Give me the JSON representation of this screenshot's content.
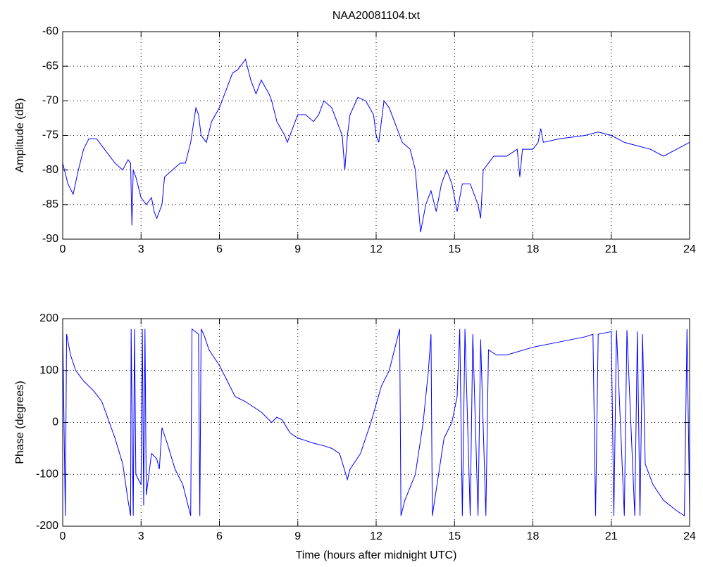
{
  "chart_data": [
    {
      "type": "line",
      "title": "NAA20081104.txt",
      "ylabel": "Amplitude (dB)",
      "color": "#0000ff",
      "grid": true,
      "xlim": [
        0,
        24
      ],
      "xticks": [
        0,
        3,
        6,
        9,
        12,
        15,
        18,
        21,
        24
      ],
      "ylim": [
        -90,
        -60
      ],
      "yticks": [
        -90,
        -85,
        -80,
        -75,
        -70,
        -65,
        -60
      ],
      "x": [
        0,
        0.2,
        0.4,
        0.6,
        0.8,
        1.0,
        1.3,
        1.6,
        2.0,
        2.3,
        2.5,
        2.6,
        2.65,
        2.7,
        2.8,
        3.0,
        3.2,
        3.4,
        3.5,
        3.6,
        3.8,
        3.9,
        4.2,
        4.5,
        4.7,
        4.9,
        5.1,
        5.2,
        5.3,
        5.5,
        5.7,
        6.0,
        6.3,
        6.5,
        6.7,
        7.0,
        7.2,
        7.4,
        7.6,
        7.9,
        8.0,
        8.2,
        8.5,
        8.6,
        8.8,
        9.0,
        9.3,
        9.6,
        9.8,
        10.0,
        10.3,
        10.5,
        10.7,
        10.8,
        10.9,
        11.0,
        11.3,
        11.6,
        11.9,
        12.0,
        12.1,
        12.3,
        12.5,
        12.7,
        13.0,
        13.3,
        13.5,
        13.7,
        13.9,
        14.1,
        14.3,
        14.5,
        14.7,
        14.9,
        15.1,
        15.3,
        15.6,
        15.9,
        16.0,
        16.1,
        16.5,
        17.0,
        17.4,
        17.5,
        17.6,
        18.0,
        18.2,
        18.3,
        18.4,
        19,
        20,
        20.5,
        21,
        21.5,
        22,
        22.5,
        23,
        23.5,
        24
      ],
      "values": [
        -79,
        -82,
        -83.5,
        -80,
        -77,
        -75.5,
        -75.5,
        -77,
        -79,
        -80,
        -78.5,
        -79,
        -88,
        -80,
        -81,
        -84,
        -85,
        -84,
        -86,
        -87,
        -85,
        -81,
        -80,
        -79,
        -79,
        -76,
        -71,
        -72,
        -75,
        -76,
        -73,
        -71,
        -68,
        -66,
        -65.5,
        -64,
        -67,
        -69,
        -67,
        -69,
        -70,
        -73,
        -75,
        -76,
        -74,
        -72,
        -72,
        -73,
        -72,
        -70,
        -71,
        -73,
        -75,
        -80,
        -75,
        -72,
        -69.5,
        -70,
        -72,
        -75,
        -76,
        -70,
        -71,
        -73,
        -76,
        -77,
        -80,
        -89,
        -85,
        -83,
        -86,
        -82,
        -80,
        -82,
        -86,
        -82,
        -82,
        -85,
        -87,
        -80,
        -78,
        -78,
        -77,
        -81,
        -77,
        -77,
        -76,
        -74,
        -76,
        -75.5,
        -75,
        -74.5,
        -75,
        -76,
        -76.5,
        -77,
        -78,
        -77,
        -76
      ]
    },
    {
      "type": "line",
      "ylabel": "Phase (degrees)",
      "xlabel": "Time (hours after midnight UTC)",
      "color": "#0000ff",
      "grid": true,
      "xlim": [
        0,
        24
      ],
      "xticks": [
        0,
        3,
        6,
        9,
        12,
        15,
        18,
        21,
        24
      ],
      "ylim": [
        -200,
        200
      ],
      "yticks": [
        -200,
        -100,
        0,
        100,
        200
      ],
      "x": [
        0,
        0.1,
        0.15,
        0.3,
        0.5,
        0.8,
        1.2,
        1.5,
        2.0,
        2.3,
        2.5,
        2.6,
        2.62,
        2.7,
        2.75,
        2.8,
        3.0,
        3.05,
        3.1,
        3.15,
        3.2,
        3.4,
        3.6,
        3.7,
        3.8,
        4.0,
        4.3,
        4.6,
        4.9,
        4.95,
        5.2,
        5.25,
        5.3,
        5.4,
        5.6,
        6.0,
        6.3,
        6.6,
        7.0,
        7.3,
        7.6,
        8.0,
        8.2,
        8.4,
        8.7,
        9.0,
        9.3,
        9.6,
        10.0,
        10.3,
        10.6,
        10.9,
        11.0,
        11.4,
        11.8,
        12.2,
        12.5,
        12.9,
        12.95,
        13.1,
        13.5,
        13.8,
        14.0,
        14.1,
        14.15,
        14.3,
        14.6,
        14.9,
        15.1,
        15.2,
        15.3,
        15.4,
        15.6,
        15.7,
        15.9,
        16.0,
        16.2,
        16.3,
        16.6,
        17,
        18,
        19,
        20,
        20.3,
        20.4,
        20.5,
        21,
        21.1,
        21.2,
        21.5,
        21.6,
        21.9,
        22,
        22.1,
        22.2,
        22.3,
        22.6,
        23.0,
        23.5,
        23.8,
        23.9,
        24
      ],
      "values": [
        180,
        -180,
        170,
        130,
        100,
        80,
        60,
        40,
        -30,
        -80,
        -150,
        -180,
        180,
        -180,
        180,
        -100,
        -120,
        180,
        -160,
        180,
        -140,
        -60,
        -70,
        -90,
        -10,
        -40,
        -90,
        -120,
        -180,
        180,
        170,
        -180,
        180,
        170,
        140,
        110,
        80,
        50,
        40,
        30,
        20,
        0,
        10,
        5,
        -20,
        -30,
        -35,
        -40,
        -45,
        -50,
        -60,
        -110,
        -90,
        -60,
        0,
        70,
        100,
        180,
        -180,
        -150,
        -100,
        0,
        100,
        170,
        -180,
        -130,
        -30,
        0,
        50,
        180,
        -180,
        180,
        -180,
        170,
        -180,
        160,
        -180,
        140,
        130,
        130,
        145,
        155,
        165,
        170,
        -180,
        170,
        175,
        -180,
        178,
        -180,
        178,
        -180,
        175,
        -180,
        170,
        -80,
        -120,
        -150,
        -170,
        -180,
        180,
        -175
      ]
    }
  ]
}
